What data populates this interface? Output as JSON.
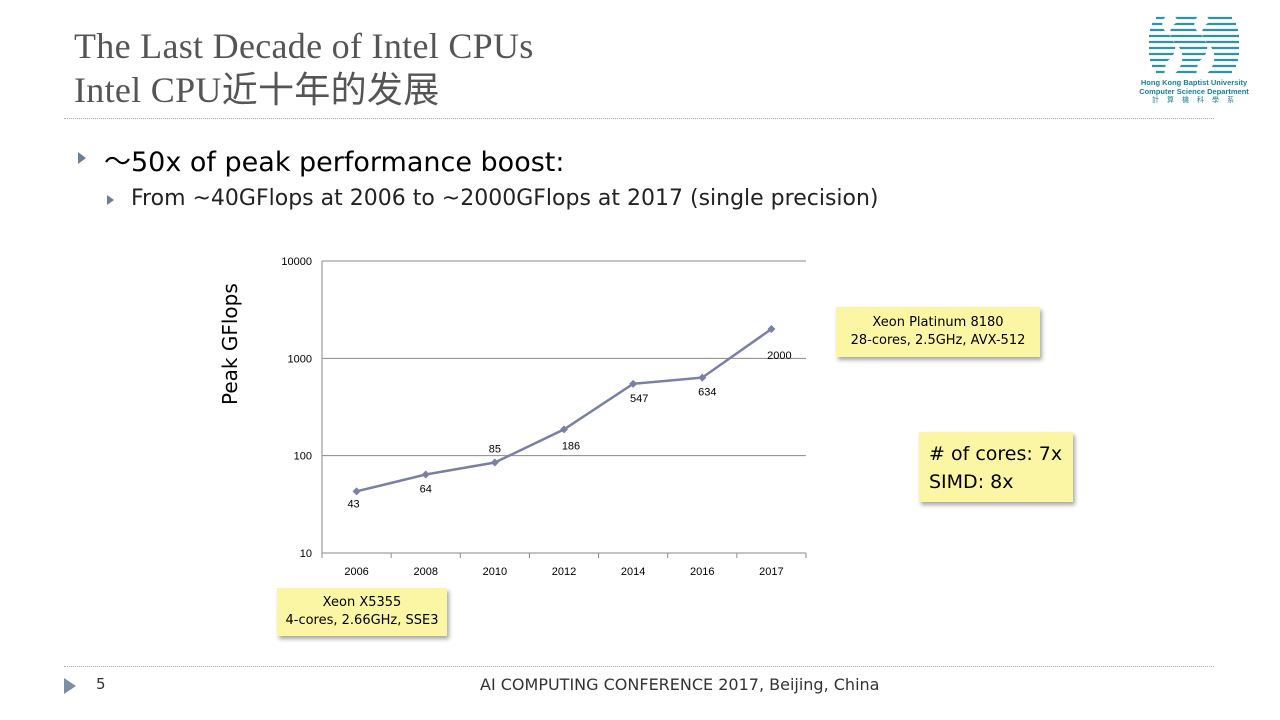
{
  "slide": {
    "title_line1": "The Last Decade of Intel CPUs",
    "title_line2": "Intel CPU近十年的发展",
    "bullet1": "～50x of peak performance boost:",
    "bullet2": "From ~40GFlops at 2006 to ~2000GFlops at 2017 (single precision)",
    "page_number": "5",
    "footer": "AI COMPUTING CONFERENCE 2017, Beijing, China"
  },
  "logo": {
    "university": "Hong Kong Baptist University",
    "department": "Computer Science Department",
    "chinese": "計算機科學系"
  },
  "notes": {
    "xeon_8180_line1": "Xeon Platinum 8180",
    "xeon_8180_line2": "28-cores, 2.5GHz,  AVX-512",
    "xeon_5355_line1": "Xeon X5355",
    "xeon_5355_line2": "4-cores, 2.66GHz, SSE3",
    "cores_line": "# of cores: 7x",
    "simd_line": "SIMD: 8x"
  },
  "colors": {
    "line": "#7b7fa6",
    "note_bg": "#fbf6a4",
    "title": "#555555",
    "bullet_arrow": "#6d7f90"
  },
  "chart_data": {
    "type": "line",
    "title": "",
    "xlabel": "",
    "ylabel": "Peak GFlops",
    "yscale": "log",
    "ylim": [
      10,
      10000
    ],
    "yticks": [
      10,
      100,
      1000,
      10000
    ],
    "ytick_labels": [
      "10",
      "100",
      "1000",
      "10000"
    ],
    "categories": [
      "2006",
      "2008",
      "2010",
      "2012",
      "2014",
      "2016",
      "2017"
    ],
    "series": [
      {
        "name": "Peak GFlops",
        "values": [
          43,
          64,
          85,
          186,
          547,
          634,
          2000
        ]
      }
    ],
    "grid": true
  }
}
